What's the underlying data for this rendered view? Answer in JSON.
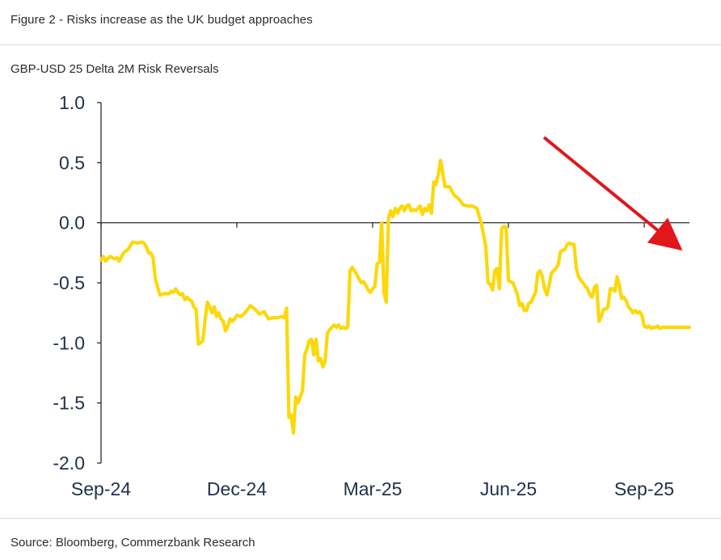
{
  "figure_title": "Figure 2 - Risks increase as the UK budget approaches",
  "source": "Source: Bloomberg, Commerzbank Research",
  "colors": {
    "series": "#fcd80a",
    "arrow": "#e3161c",
    "axis": "#1a1a1a",
    "text": "#1f3148"
  },
  "chart_data": {
    "type": "line",
    "title": "GBP-USD 25 Delta 2M Risk Reversals",
    "xlabel": "",
    "ylabel": "",
    "ylim": [
      -2.0,
      1.0
    ],
    "xlim": [
      0,
      13.0
    ],
    "yticks": [
      "1.0",
      "0.5",
      "0.0",
      "-0.5",
      "-1.0",
      "-1.5",
      "-2.0"
    ],
    "xticks": [
      {
        "label": "Sep-24",
        "x": 0
      },
      {
        "label": "Dec-24",
        "x": 3
      },
      {
        "label": "Mar-25",
        "x": 6
      },
      {
        "label": "Jun-25",
        "x": 9
      },
      {
        "label": "Sep-25",
        "x": 12
      }
    ],
    "annotation": "red downward arrow indicating deteriorating risk reversals",
    "series": [
      {
        "name": "GBP-USD 25 Delta 2M Risk Reversals",
        "x": [
          0,
          0.05,
          0.1,
          0.2,
          0.3,
          0.35,
          0.4,
          0.5,
          0.6,
          0.7,
          0.8,
          0.9,
          0.95,
          1.0,
          1.05,
          1.1,
          1.15,
          1.2,
          1.3,
          1.4,
          1.5,
          1.55,
          1.6,
          1.65,
          1.7,
          1.75,
          1.8,
          1.85,
          1.9,
          1.95,
          2.0,
          2.05,
          2.1,
          2.15,
          2.2,
          2.25,
          2.3,
          2.35,
          2.4,
          2.45,
          2.5,
          2.55,
          2.6,
          2.65,
          2.7,
          2.75,
          2.8,
          2.85,
          2.9,
          2.95,
          3.0,
          3.1,
          3.2,
          3.3,
          3.4,
          3.5,
          3.6,
          3.7,
          3.8,
          3.9,
          4.0,
          4.05,
          4.1,
          4.15,
          4.2,
          4.25,
          4.3,
          4.35,
          4.4,
          4.45,
          4.5,
          4.55,
          4.6,
          4.65,
          4.7,
          4.75,
          4.8,
          4.85,
          4.9,
          4.95,
          5.0,
          5.05,
          5.1,
          5.15,
          5.2,
          5.25,
          5.3,
          5.35,
          5.4,
          5.45,
          5.5,
          5.55,
          5.6,
          5.65,
          5.7,
          5.75,
          5.8,
          5.85,
          5.9,
          5.95,
          6.0,
          6.05,
          6.1,
          6.15,
          6.2,
          6.25,
          6.3,
          6.35,
          6.4,
          6.45,
          6.5,
          6.55,
          6.6,
          6.65,
          6.7,
          6.75,
          6.8,
          6.85,
          6.9,
          6.95,
          7.0,
          7.05,
          7.1,
          7.15,
          7.2,
          7.25,
          7.3,
          7.35,
          7.4,
          7.45,
          7.5,
          7.6,
          7.7,
          7.8,
          7.9,
          8.0,
          8.1,
          8.2,
          8.3,
          8.4,
          8.5,
          8.55,
          8.6,
          8.65,
          8.7,
          8.75,
          8.8,
          8.85,
          8.9,
          8.95,
          9.0,
          9.05,
          9.1,
          9.15,
          9.2,
          9.25,
          9.3,
          9.35,
          9.4,
          9.45,
          9.5,
          9.55,
          9.6,
          9.65,
          9.7,
          9.75,
          9.8,
          9.85,
          9.9,
          9.95,
          10.0,
          10.05,
          10.1,
          10.15,
          10.2,
          10.25,
          10.3,
          10.35,
          10.4,
          10.45,
          10.5,
          10.55,
          10.6,
          10.65,
          10.7,
          10.75,
          10.8,
          10.85,
          10.9,
          10.95,
          11.0,
          11.05,
          11.1,
          11.15,
          11.2,
          11.25,
          11.3,
          11.35,
          11.4,
          11.45,
          11.5,
          11.55,
          11.6,
          11.65,
          11.7,
          11.75,
          11.8,
          11.85,
          11.9,
          11.95,
          12.0,
          12.05,
          12.1,
          12.15,
          12.2,
          12.25,
          12.3,
          12.35,
          12.4,
          12.45,
          12.5,
          12.55,
          12.6,
          12.65,
          12.7,
          12.75,
          12.8,
          12.85,
          12.9,
          12.95,
          13.0
        ],
        "values": [
          -0.31,
          -0.28,
          -0.32,
          -0.28,
          -0.3,
          -0.29,
          -0.32,
          -0.25,
          -0.22,
          -0.16,
          -0.17,
          -0.16,
          -0.17,
          -0.2,
          -0.25,
          -0.25,
          -0.29,
          -0.47,
          -0.6,
          -0.59,
          -0.59,
          -0.57,
          -0.58,
          -0.55,
          -0.58,
          -0.6,
          -0.59,
          -0.64,
          -0.62,
          -0.64,
          -0.65,
          -0.7,
          -0.72,
          -1.01,
          -1.0,
          -0.98,
          -0.8,
          -0.66,
          -0.7,
          -0.75,
          -0.7,
          -0.78,
          -0.75,
          -0.8,
          -0.82,
          -0.9,
          -0.86,
          -0.8,
          -0.82,
          -0.8,
          -0.77,
          -0.78,
          -0.74,
          -0.69,
          -0.72,
          -0.76,
          -0.74,
          -0.8,
          -0.79,
          -0.79,
          -0.78,
          -0.79,
          -0.71,
          -1.62,
          -1.6,
          -1.75,
          -1.45,
          -1.5,
          -1.45,
          -1.4,
          -1.1,
          -1.05,
          -0.98,
          -0.97,
          -1.1,
          -0.97,
          -1.15,
          -1.13,
          -1.2,
          -1.15,
          -0.92,
          -0.89,
          -0.87,
          -0.85,
          -0.87,
          -0.85,
          -0.88,
          -0.87,
          -0.88,
          -0.87,
          -0.4,
          -0.37,
          -0.4,
          -0.43,
          -0.47,
          -0.5,
          -0.49,
          -0.52,
          -0.56,
          -0.58,
          -0.55,
          -0.53,
          -0.34,
          -0.33,
          0.0,
          -0.58,
          -0.66,
          0.04,
          0.1,
          0.05,
          0.12,
          0.08,
          0.12,
          0.14,
          0.1,
          0.14,
          0.15,
          0.1,
          0.11,
          0.1,
          0.12,
          0.14,
          0.07,
          0.12,
          0.1,
          0.15,
          0.08,
          0.34,
          0.32,
          0.4,
          0.52,
          0.3,
          0.3,
          0.23,
          0.2,
          0.15,
          0.14,
          0.14,
          0.12,
          0.0,
          -0.2,
          -0.5,
          -0.51,
          -0.56,
          -0.4,
          -0.38,
          -0.55,
          -0.05,
          -0.03,
          -0.04,
          -0.48,
          -0.49,
          -0.5,
          -0.55,
          -0.6,
          -0.69,
          -0.67,
          -0.73,
          -0.73,
          -0.67,
          -0.66,
          -0.62,
          -0.58,
          -0.42,
          -0.4,
          -0.45,
          -0.55,
          -0.6,
          -0.52,
          -0.42,
          -0.4,
          -0.38,
          -0.35,
          -0.24,
          -0.23,
          -0.22,
          -0.18,
          -0.17,
          -0.18,
          -0.18,
          -0.38,
          -0.45,
          -0.48,
          -0.5,
          -0.53,
          -0.55,
          -0.6,
          -0.62,
          -0.54,
          -0.52,
          -0.82,
          -0.78,
          -0.72,
          -0.72,
          -0.7,
          -0.55,
          -0.55,
          -0.57,
          -0.45,
          -0.52,
          -0.63,
          -0.62,
          -0.65,
          -0.7,
          -0.72,
          -0.75,
          -0.73,
          -0.75,
          -0.74,
          -0.77,
          -0.86,
          -0.87,
          -0.86,
          -0.88,
          -0.87,
          -0.87,
          -0.86,
          -0.88,
          -0.87,
          -0.87,
          -0.87,
          -0.87,
          -0.87,
          -0.87,
          -0.87,
          -0.87,
          -0.87,
          -0.87,
          -0.87,
          -0.87,
          -0.87
        ]
      }
    ]
  }
}
